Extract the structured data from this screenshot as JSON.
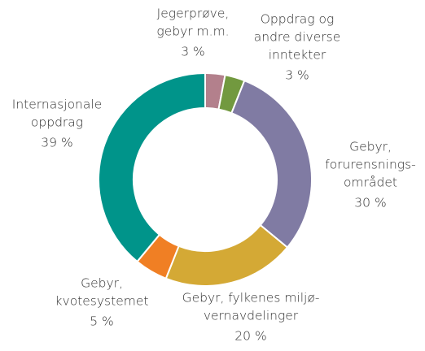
{
  "chart_data": {
    "type": "donut",
    "categories": [
      "Jegerprøve,\ngebyr m.m.",
      "Oppdrag og\nandre diverse\ninntekter",
      "Gebyr,\nforurensnings-\nområdet",
      "Gebyr, fylkenes miljø-\nvernavdelinger",
      "Gebyr,\nkvotesystemet",
      "Internasjonale\noppdrag"
    ],
    "values": [
      3,
      3,
      30,
      20,
      5,
      39
    ],
    "value_labels": [
      "3 %",
      "3 %",
      "30 %",
      "20 %",
      "5 %",
      "39 %"
    ],
    "colors": [
      "#b3808c",
      "#72993f",
      "#807ba3",
      "#d4a935",
      "#f07f24",
      "#00948a"
    ]
  }
}
